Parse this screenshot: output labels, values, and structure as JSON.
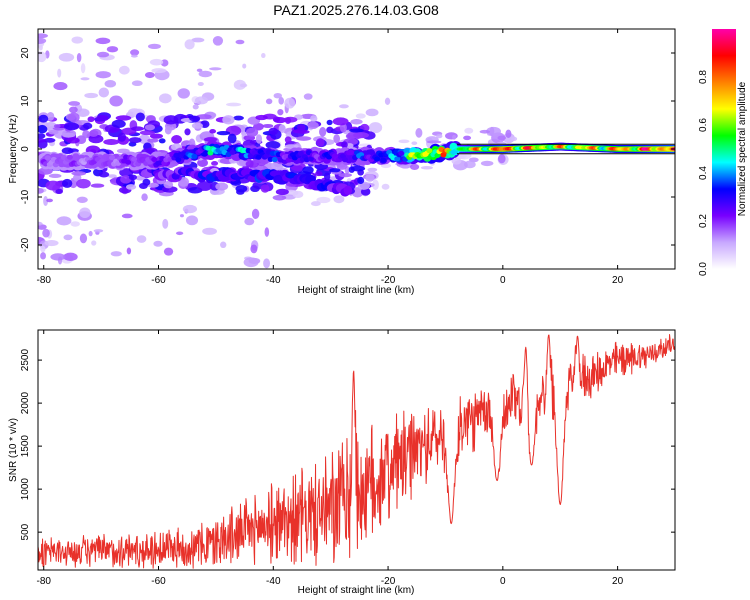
{
  "title": "PAZ1.2025.276.14.03.G08",
  "chart_data": [
    {
      "type": "heatmap",
      "title": "PAZ1.2025.276.14.03.G08",
      "xlabel": "Height of straight line (km)",
      "ylabel": "Frequency (Hz)",
      "xlim": [
        -81,
        30
      ],
      "ylim": [
        -25,
        25
      ],
      "xticks": [
        -80,
        -60,
        -40,
        -20,
        0,
        20
      ],
      "yticks": [
        -20,
        -10,
        0,
        10,
        20
      ],
      "colorbar": {
        "label": "Normalized spectral amplitude",
        "range": [
          0,
          1
        ],
        "ticks": [
          0.0,
          0.2,
          0.4,
          0.6,
          0.8
        ],
        "tick_labels": [
          "0.0",
          "0.2",
          "0.4",
          "0.6",
          "0.8"
        ],
        "colormap": [
          "#ffffff",
          "#c8a8ff",
          "#7800ff",
          "#0000ff",
          "#00ffff",
          "#00ff00",
          "#ffff00",
          "#ff8000",
          "#ff0000",
          "#ff00aa"
        ]
      },
      "ridge": {
        "height_km": [
          -80,
          -70,
          -60,
          -50,
          -40,
          -30,
          -20,
          -12,
          -8,
          0,
          10,
          20,
          30
        ],
        "frequency_hz": [
          -2.5,
          -2.5,
          -2.5,
          0.0,
          -1.5,
          -1.5,
          -1.5,
          -1.0,
          0.0,
          0.0,
          0.5,
          0.0,
          0.0
        ],
        "amplitude": [
          0.15,
          0.15,
          0.2,
          0.45,
          0.3,
          0.25,
          0.35,
          0.8,
          0.6,
          0.9,
          0.7,
          0.8,
          0.95
        ]
      },
      "lower_branch": {
        "height_km": [
          -62,
          -50,
          -40,
          -33,
          -27
        ],
        "frequency_hz": [
          -5.0,
          -5.5,
          -5.5,
          -7.0,
          -8.5
        ],
        "amplitude": [
          0.15,
          0.2,
          0.25,
          0.2,
          0.15
        ]
      },
      "boundary_lines_hz": [
        1.0,
        -1.0
      ],
      "boundary_start_km": -8
    },
    {
      "type": "line",
      "xlabel": "Height of straight line (km)",
      "ylabel": "SNR (10 * v/v)",
      "xlim": [
        -81,
        30
      ],
      "ylim": [
        60,
        2850
      ],
      "xticks": [
        -80,
        -60,
        -40,
        -20,
        0,
        20
      ],
      "yticks": [
        500,
        1000,
        1500,
        2000,
        2500
      ],
      "color": "#e8312a",
      "trend": {
        "x": [
          -81,
          -70,
          -60,
          -52,
          -45,
          -38,
          -30,
          -25,
          -20,
          -15,
          -10,
          -5,
          0,
          5,
          10,
          15,
          20,
          25,
          30
        ],
        "y": [
          260,
          280,
          300,
          340,
          500,
          650,
          750,
          950,
          1200,
          1450,
          1650,
          1800,
          1950,
          2050,
          2250,
          2300,
          2500,
          2550,
          2700
        ]
      },
      "noise_amplitude": {
        "x": [
          -81,
          -55,
          -40,
          -25,
          -20,
          -12,
          0,
          10,
          30
        ],
        "y": [
          170,
          250,
          480,
          850,
          650,
          420,
          380,
          350,
          120
        ]
      },
      "dips": [
        {
          "x": -9,
          "y": 600
        },
        {
          "x": -1,
          "y": 1100
        },
        {
          "x": 5,
          "y": 1280
        },
        {
          "x": 10,
          "y": 820
        }
      ],
      "peaks": [
        {
          "x": -26,
          "y": 2380
        },
        {
          "x": 4,
          "y": 2650
        },
        {
          "x": 8,
          "y": 2800
        },
        {
          "x": 13,
          "y": 2780
        }
      ]
    }
  ]
}
